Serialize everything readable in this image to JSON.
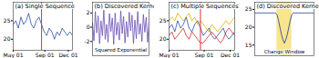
{
  "chart_data": [
    {
      "type": "line",
      "title": "(a) Single Sequence",
      "x": [
        0,
        10,
        20,
        30,
        40,
        50,
        60,
        70,
        80,
        90,
        100,
        110,
        120,
        130,
        140,
        150,
        160,
        170,
        180,
        190,
        200,
        210,
        220,
        230
      ],
      "series": [
        {
          "color": "#2b4fa3",
          "values": [
            24,
            25,
            23,
            26,
            24,
            25,
            27,
            24,
            23,
            25,
            26,
            24,
            22,
            21,
            23,
            22,
            20,
            22,
            21,
            23,
            22,
            21,
            22,
            21
          ]
        }
      ],
      "change_point": 110,
      "xlim": [
        0,
        230
      ],
      "xticks": [
        {
          "value": 0,
          "label": "May 01"
        },
        {
          "value": 123,
          "label": "Sep 01"
        },
        {
          "value": 214,
          "label": "Dec 01"
        }
      ],
      "ylim": [
        17,
        30
      ],
      "yticks": [
        20,
        25
      ]
    },
    {
      "type": "line",
      "title": "(b) Discovered Kernel",
      "x": [
        0,
        1,
        2,
        3,
        4,
        5,
        6,
        7,
        8,
        9,
        10,
        11,
        12,
        13,
        14,
        15,
        16,
        17,
        18,
        19,
        20,
        21,
        22,
        23,
        24,
        25,
        26,
        27,
        28,
        29,
        30,
        31,
        32,
        33,
        34,
        35,
        36,
        37,
        38,
        39,
        40
      ],
      "series": [
        {
          "color": "#6a4fb0",
          "values": [
            0.6,
            -1.9,
            2.2,
            -0.8,
            1.6,
            -2.3,
            0.9,
            -1.2,
            2.4,
            -1.7,
            0.4,
            -2.1,
            1.9,
            -0.6,
            1.3,
            -2.4,
            2.0,
            -1.1,
            0.7,
            -1.8,
            2.3,
            -0.9,
            1.5,
            -2.2,
            0.8,
            -1.4,
            2.1,
            -0.5,
            1.7,
            -2.3,
            1.0,
            -1.6,
            2.2,
            -1.0,
            0.5,
            -2.0,
            1.8,
            -0.7,
            1.4,
            -2.1,
            0.9
          ]
        }
      ],
      "annotations": [
        {
          "text": "Squared Exponential",
          "x": 20,
          "y": -3.2
        }
      ],
      "xlim": [
        0,
        40
      ],
      "ylim": [
        -4,
        3.5
      ],
      "yticks": [
        -2,
        0,
        2
      ],
      "tick_labels": "y"
    },
    {
      "type": "line",
      "title": "(c) Multiple Sequences",
      "x": [
        0,
        10,
        20,
        30,
        40,
        50,
        60,
        70,
        80,
        90,
        100,
        110,
        120,
        130,
        140,
        150,
        160,
        170,
        180,
        190,
        200,
        210,
        220,
        230
      ],
      "series": [
        {
          "color": "#2b4fa3",
          "values": [
            23,
            24,
            22,
            25,
            23,
            24,
            26,
            23,
            22,
            24,
            25,
            23,
            21,
            22,
            23,
            21,
            20,
            21,
            22,
            23,
            21,
            20,
            21,
            22
          ]
        },
        {
          "color": "#e0b000",
          "values": [
            25,
            26,
            25,
            27,
            26,
            25,
            26,
            27,
            25,
            26,
            24,
            25,
            24,
            23,
            22,
            24,
            23,
            22,
            23,
            24,
            25,
            24,
            25,
            26
          ]
        },
        {
          "color": "#d62728",
          "values": [
            21,
            22,
            20,
            21,
            22,
            23,
            21,
            20,
            22,
            21,
            20,
            19,
            19,
            20,
            21,
            22,
            21,
            20,
            19,
            20,
            22,
            23,
            22,
            21
          ]
        }
      ],
      "change_point": 110,
      "xlim": [
        0,
        230
      ],
      "xticks": [
        {
          "value": 0,
          "label": "May 01"
        },
        {
          "value": 123,
          "label": "Sep 01"
        },
        {
          "value": 214,
          "label": "Dec 01"
        }
      ],
      "ylim": [
        17,
        30
      ],
      "yticks": [
        20,
        25
      ]
    },
    {
      "type": "line",
      "title": "(d) Discovered Kernel",
      "x": [
        0,
        1,
        2,
        3,
        4,
        5,
        6,
        7,
        8,
        9,
        10,
        11,
        12,
        13,
        14,
        15,
        16,
        17,
        18,
        19,
        20,
        21,
        22,
        23,
        24,
        25,
        26,
        27,
        28,
        29,
        30,
        31,
        32,
        33,
        34,
        35,
        36,
        37,
        38,
        39,
        40
      ],
      "series": [
        {
          "color": "#1f3b8c",
          "values": [
            24,
            24,
            24,
            24,
            24,
            24,
            24,
            24,
            24,
            24,
            24,
            24,
            24,
            24,
            24,
            23.5,
            22,
            20,
            18,
            16.5,
            15.5,
            16.5,
            18,
            20,
            22,
            23.5,
            24,
            24,
            24,
            24,
            24,
            24,
            24,
            24,
            24,
            24,
            24,
            24,
            24,
            24,
            24
          ]
        }
      ],
      "change_window": [
        15,
        25
      ],
      "annotations": [
        {
          "text": "Change Window",
          "x": 20,
          "y": 13.2
        }
      ],
      "xlim": [
        0,
        40
      ],
      "ylim": [
        12,
        27
      ],
      "yticks": [
        15,
        20,
        25
      ],
      "tick_labels": "y"
    }
  ]
}
